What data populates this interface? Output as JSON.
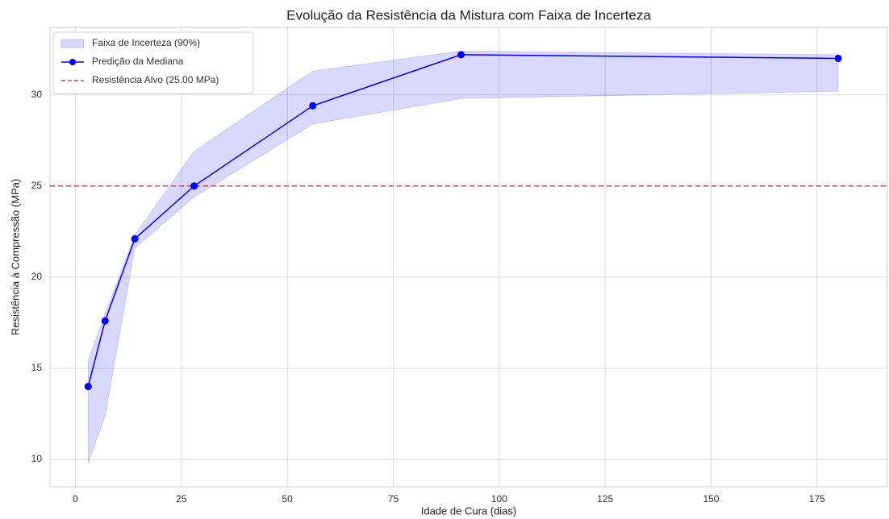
{
  "chart_data": {
    "type": "line",
    "title": "Evolução da Resistência da Mistura com Faixa de Incerteza",
    "xlabel": "Idade de Cura (dias)",
    "ylabel": "Resistência à Compressão (MPa)",
    "x": [
      3,
      7,
      14,
      28,
      56,
      91,
      180
    ],
    "series": [
      {
        "name": "Predição da Mediana",
        "color": "#0000ff",
        "values": [
          14.0,
          17.6,
          22.1,
          25.0,
          29.4,
          32.2,
          32.0
        ]
      }
    ],
    "band": {
      "name": "Faixa de Incerteza (90%)",
      "color": "#0000ff",
      "lower": [
        9.8,
        12.4,
        21.6,
        24.4,
        28.4,
        29.8,
        30.2
      ],
      "upper": [
        15.4,
        18.0,
        22.3,
        26.9,
        31.3,
        32.4,
        32.2
      ]
    },
    "target": {
      "name": "Resistência Alvo (25.00 MPa)",
      "value": 25,
      "color": "#c44e52"
    },
    "xlim": [
      -6,
      191.6
    ],
    "ylim": [
      8.5,
      33.7
    ],
    "xticks": [
      0,
      25,
      50,
      75,
      100,
      125,
      150,
      175
    ],
    "yticks": [
      10,
      15,
      20,
      25,
      30
    ],
    "grid": true,
    "legend": "upper left"
  }
}
